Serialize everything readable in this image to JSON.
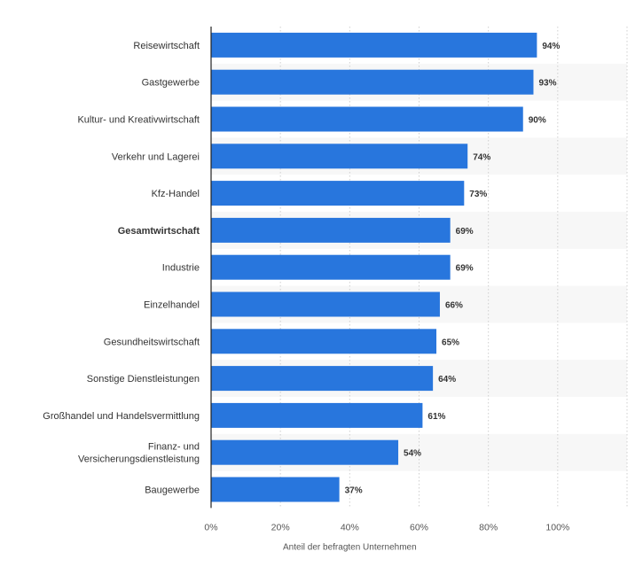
{
  "chart_data": {
    "type": "bar",
    "orientation": "horizontal",
    "categories": [
      "Reisewirtschaft",
      "Gastgewerbe",
      "Kultur- und Kreativwirtschaft",
      "Verkehr und Lagerei",
      "Kfz-Handel",
      "Gesamtwirtschaft",
      "Industrie",
      "Einzelhandel",
      "Gesundheitswirtschaft",
      "Sonstige Dienstleistungen",
      "Großhandel und Handelsvermittlung",
      "Finanz- und Versicherungsdienstleistung",
      "Baugewerbe"
    ],
    "category_lines": [
      [
        "Reisewirtschaft"
      ],
      [
        "Gastgewerbe"
      ],
      [
        "Kultur- und Kreativwirtschaft"
      ],
      [
        "Verkehr und Lagerei"
      ],
      [
        "Kfz-Handel"
      ],
      [
        "Gesamtwirtschaft"
      ],
      [
        "Industrie"
      ],
      [
        "Einzelhandel"
      ],
      [
        "Gesundheitswirtschaft"
      ],
      [
        "Sonstige Dienstleistungen"
      ],
      [
        "Großhandel und Handelsvermittlung"
      ],
      [
        "Finanz- und",
        "Versicherungsdienstleistung"
      ],
      [
        "Baugewerbe"
      ]
    ],
    "bold_categories": [
      "Gesamtwirtschaft"
    ],
    "values": [
      94,
      93,
      90,
      74,
      73,
      69,
      69,
      66,
      65,
      64,
      61,
      54,
      37
    ],
    "value_labels": [
      "94%",
      "93%",
      "90%",
      "74%",
      "73%",
      "69%",
      "69%",
      "66%",
      "65%",
      "64%",
      "61%",
      "54%",
      "37%"
    ],
    "x_ticks": [
      0,
      20,
      40,
      60,
      80,
      100
    ],
    "x_tick_labels": [
      "0%",
      "20%",
      "40%",
      "60%",
      "80%",
      "100%"
    ],
    "xlim": [
      0,
      120
    ],
    "xlabel": "Anteil der befragten Unternehmen",
    "ylabel": "",
    "title": "",
    "grid": true,
    "colors": {
      "bar": "#2876dd",
      "band": "#f7f7f7",
      "grid": "#cfcfcf",
      "axis": "#222222",
      "text": "#333333"
    }
  }
}
